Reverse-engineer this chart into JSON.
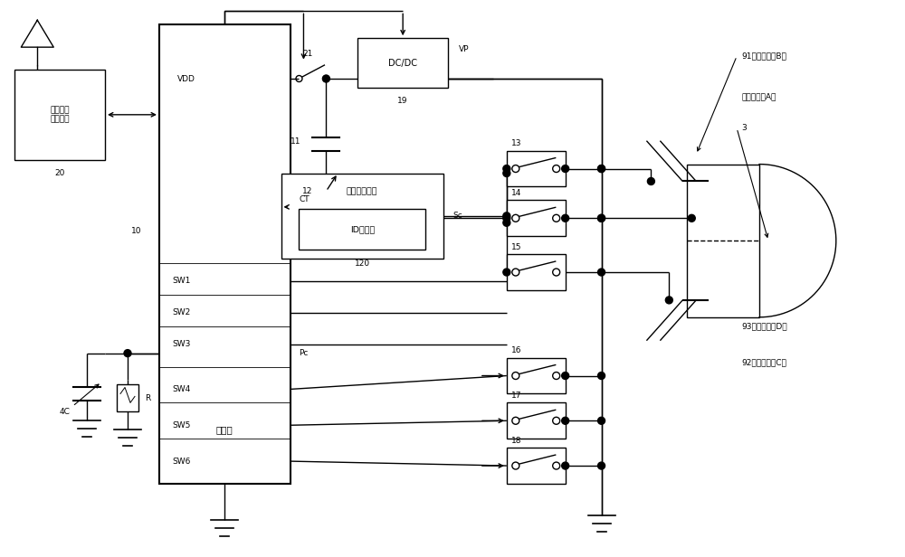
{
  "bg_color": "#ffffff",
  "figsize": [
    10.0,
    6.16
  ],
  "dpi": 100,
  "labels": {
    "wireless_box": "无线信号\n通信电路",
    "num20": "20",
    "controller_box": "控制器",
    "num10": "10",
    "vdd": "VDD",
    "num21": "21",
    "dcdc": "DC/DC",
    "vp": "VP",
    "num19": "19",
    "num11": "11",
    "num12": "12",
    "signal_gen": "信号生成电路",
    "id_add": "ID附加部",
    "num120": "120",
    "ct": "CT",
    "sc": "Sc",
    "sw1": "SW1",
    "sw2": "SW2",
    "sw3": "SW3",
    "sw4": "SW4",
    "sw5": "SW5",
    "sw6": "SW6",
    "pc": "Pc",
    "cap4c": "4C",
    "r_label": "R",
    "num13": "13",
    "num14": "14",
    "num15": "15",
    "num16": "16",
    "num17": "17",
    "num18": "18",
    "electrode91": "91（周边电极B）",
    "electrode_center": "（中心电极A）",
    "num3": "3",
    "electrode92": "92（周边电极C）",
    "electrode93": "93（周边电极D）"
  }
}
